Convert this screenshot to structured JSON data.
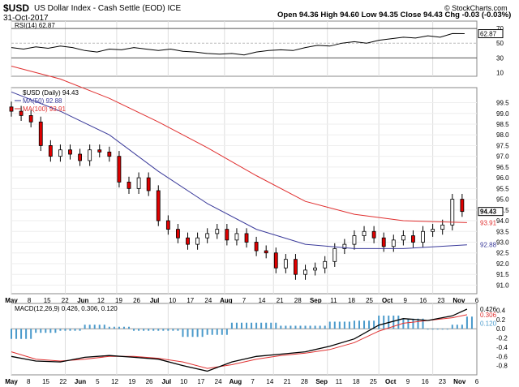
{
  "header": {
    "symbol": "$USD",
    "description": "US Dollar Index - Cash Settle (EOD) ICE",
    "date": "31-Oct-2017",
    "brand": "© StockCharts.com",
    "ohlc": "Open 94.36  High 94.60  Low 94.35  Close 94.43  Chg -0.03 (-0.03%)"
  },
  "chart_data": [
    {
      "type": "line",
      "panel": "rsi",
      "legend": "RSI(14) 62.87",
      "ylim": [
        5,
        80
      ],
      "yticks": [
        10,
        30,
        50,
        70
      ],
      "reference_lines": [
        30,
        50,
        70
      ],
      "current_value": "62.87",
      "x_day_index": [
        0,
        5,
        10,
        15,
        20,
        25,
        30,
        35,
        40,
        45,
        50,
        55,
        60,
        65,
        70,
        75,
        80,
        85,
        90,
        95,
        100,
        105,
        110,
        115,
        120,
        125,
        130,
        135,
        140,
        145,
        150,
        155,
        160,
        165,
        170,
        175,
        180,
        185
      ],
      "values": [
        44,
        42,
        45,
        43,
        46,
        44,
        40,
        38,
        42,
        41,
        44,
        42,
        40,
        42,
        39,
        38,
        36,
        35,
        36,
        34,
        38,
        40,
        41,
        40,
        44,
        47,
        46,
        50,
        52,
        50,
        54,
        56,
        58,
        57,
        60,
        58,
        63,
        62.87
      ]
    },
    {
      "type": "candlestick",
      "panel": "price",
      "legend": [
        "$USD (Daily) 94.43",
        "MA(50) 92.88",
        "MA(100) 93.91"
      ],
      "ylim": [
        90.6,
        100.2
      ],
      "yticks": [
        "91.0",
        "91.5",
        "92.0",
        "92.5",
        "93.0",
        "93.5",
        "94.0",
        "94.5",
        "95.0",
        "95.5",
        "96.0",
        "96.5",
        "97.0",
        "97.5",
        "98.0",
        "98.5",
        "99.0",
        "99.5"
      ],
      "x_labels": [
        "May",
        "8",
        "15",
        "22",
        "Jun",
        "12",
        "19",
        "26",
        "Jul",
        "10",
        "17",
        "24",
        "Aug",
        "7",
        "14",
        "21",
        "28",
        "Sep",
        "11",
        "18",
        "25",
        "Oct",
        "9",
        "16",
        "23",
        "Nov",
        "6"
      ],
      "last_value": "94.43",
      "close_x_day_index": [
        0,
        4,
        8,
        12,
        16,
        20,
        24,
        28,
        32,
        36,
        40,
        44,
        48,
        52,
        56,
        60,
        64,
        68,
        72,
        76,
        80,
        84,
        88,
        92,
        96,
        100,
        104,
        108,
        112,
        116,
        120,
        124,
        128,
        132,
        136,
        140,
        144,
        148,
        152,
        156,
        160,
        164,
        168,
        172,
        176,
        180,
        184
      ],
      "closes": [
        99.1,
        98.9,
        98.6,
        97.5,
        97.0,
        97.3,
        97.1,
        96.8,
        97.3,
        97.2,
        97.0,
        95.8,
        95.5,
        96.0,
        95.4,
        94.0,
        93.6,
        93.2,
        92.9,
        93.2,
        93.4,
        93.6,
        93.1,
        93.4,
        93.0,
        92.6,
        92.5,
        91.8,
        92.2,
        91.5,
        91.7,
        91.8,
        92.1,
        92.7,
        92.9,
        93.3,
        93.5,
        93.2,
        92.8,
        93.1,
        93.3,
        93.0,
        93.5,
        93.6,
        93.8,
        95.0,
        94.43
      ],
      "ma50": {
        "name": "MA(50) 92.88",
        "x_day_index": [
          0,
          20,
          40,
          60,
          80,
          100,
          120,
          140,
          160,
          186
        ],
        "values": [
          100.0,
          99.1,
          98.0,
          96.3,
          94.8,
          93.6,
          92.9,
          92.7,
          92.7,
          92.88
        ]
      },
      "ma100": {
        "name": "MA(100) 93.91",
        "x_day_index": [
          0,
          20,
          40,
          60,
          80,
          100,
          120,
          140,
          160,
          186
        ],
        "values": [
          101.2,
          100.6,
          99.7,
          98.6,
          97.4,
          96.1,
          94.9,
          94.3,
          94.0,
          93.91
        ]
      },
      "current_labels": [
        "92.88",
        "93.91"
      ]
    },
    {
      "type": "line",
      "panel": "macd",
      "legend": "MACD(12,26,9) 0.426, 0.306, 0.120",
      "ylim": [
        -1.0,
        0.55
      ],
      "yticks": [
        "-0.8",
        "-0.6",
        "-0.4",
        "-0.2",
        "0.0",
        "0.2",
        "0.4"
      ],
      "x_labels": [
        "May",
        "8",
        "15",
        "22",
        "Jun",
        "5",
        "12",
        "19",
        "26",
        "Jul",
        "10",
        "17",
        "24",
        "Aug",
        "7",
        "14",
        "21",
        "28",
        "Sep",
        "11",
        "18",
        "25",
        "Oct",
        "9",
        "16",
        "23",
        "Nov",
        "6"
      ],
      "current_labels": [
        "0.426",
        "0.306",
        "0.120"
      ],
      "x_day_index": [
        0,
        10,
        20,
        30,
        40,
        50,
        60,
        70,
        80,
        90,
        100,
        110,
        120,
        130,
        140,
        150,
        160,
        170,
        180,
        186
      ],
      "macd": [
        -0.6,
        -0.7,
        -0.72,
        -0.62,
        -0.58,
        -0.62,
        -0.66,
        -0.8,
        -0.92,
        -0.72,
        -0.6,
        -0.55,
        -0.5,
        -0.38,
        -0.22,
        0.08,
        0.22,
        0.18,
        0.28,
        0.426
      ],
      "signal": [
        -0.5,
        -0.66,
        -0.7,
        -0.66,
        -0.6,
        -0.6,
        -0.64,
        -0.72,
        -0.86,
        -0.78,
        -0.66,
        -0.58,
        -0.53,
        -0.45,
        -0.3,
        -0.05,
        0.12,
        0.18,
        0.24,
        0.306
      ]
    }
  ]
}
